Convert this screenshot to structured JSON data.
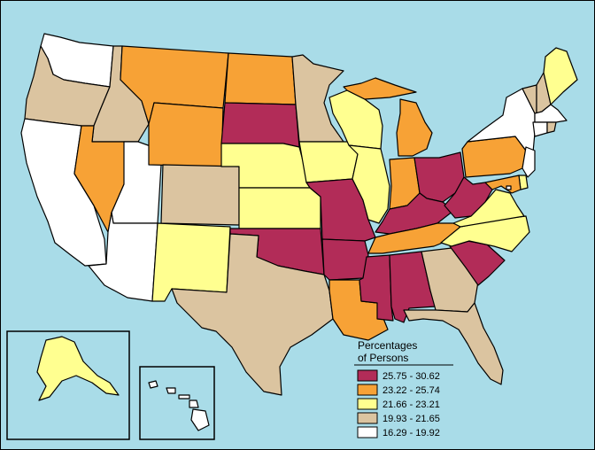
{
  "colors": {
    "ocean": "#a9dce8",
    "border": "#000000",
    "c1": "#b22c58",
    "c2": "#f7a236",
    "c3": "#ffff90",
    "c4": "#dbc4a0",
    "c5": "#ffffff"
  },
  "legend": {
    "title_line1": "Percentages",
    "title_line2": "of Persons",
    "items": [
      {
        "label": "25.75 - 30.62",
        "color": "#b22c58"
      },
      {
        "label": "23.22 - 25.74",
        "color": "#f7a236"
      },
      {
        "label": "21.66 - 23.21",
        "color": "#ffff90"
      },
      {
        "label": "19.93 - 21.65",
        "color": "#dbc4a0"
      },
      {
        "label": "16.29 - 19.92",
        "color": "#ffffff"
      }
    ]
  },
  "states": [
    {
      "name": "WA",
      "class": 5
    },
    {
      "name": "OR",
      "class": 4
    },
    {
      "name": "CA",
      "class": 5
    },
    {
      "name": "ID",
      "class": 4
    },
    {
      "name": "NV",
      "class": 2
    },
    {
      "name": "UT",
      "class": 5
    },
    {
      "name": "AZ",
      "class": 5
    },
    {
      "name": "MT",
      "class": 2
    },
    {
      "name": "WY",
      "class": 2
    },
    {
      "name": "CO",
      "class": 4
    },
    {
      "name": "NM",
      "class": 3
    },
    {
      "name": "ND",
      "class": 2
    },
    {
      "name": "SD",
      "class": 1
    },
    {
      "name": "NE",
      "class": 3
    },
    {
      "name": "KS",
      "class": 3
    },
    {
      "name": "OK",
      "class": 1
    },
    {
      "name": "TX",
      "class": 4
    },
    {
      "name": "MN",
      "class": 4
    },
    {
      "name": "IA",
      "class": 3
    },
    {
      "name": "MO",
      "class": 1
    },
    {
      "name": "AR",
      "class": 1
    },
    {
      "name": "LA",
      "class": 2
    },
    {
      "name": "WI",
      "class": 3
    },
    {
      "name": "IL",
      "class": 3
    },
    {
      "name": "MI",
      "class": 2
    },
    {
      "name": "IN",
      "class": 2
    },
    {
      "name": "OH",
      "class": 1
    },
    {
      "name": "KY",
      "class": 1
    },
    {
      "name": "TN",
      "class": 2
    },
    {
      "name": "MS",
      "class": 1
    },
    {
      "name": "AL",
      "class": 1
    },
    {
      "name": "GA",
      "class": 4
    },
    {
      "name": "FL",
      "class": 4
    },
    {
      "name": "SC",
      "class": 1
    },
    {
      "name": "NC",
      "class": 3
    },
    {
      "name": "VA",
      "class": 3
    },
    {
      "name": "WV",
      "class": 1
    },
    {
      "name": "PA",
      "class": 2
    },
    {
      "name": "NY",
      "class": 5
    },
    {
      "name": "VT",
      "class": 4
    },
    {
      "name": "NH",
      "class": 4
    },
    {
      "name": "ME",
      "class": 3
    },
    {
      "name": "MA",
      "class": 5
    },
    {
      "name": "CT",
      "class": 5
    },
    {
      "name": "RI",
      "class": 4
    },
    {
      "name": "NJ",
      "class": 5
    },
    {
      "name": "DE",
      "class": 3
    },
    {
      "name": "MD",
      "class": 2
    },
    {
      "name": "DC",
      "class": 5
    },
    {
      "name": "AK",
      "class": 3
    },
    {
      "name": "HI",
      "class": 5
    }
  ]
}
